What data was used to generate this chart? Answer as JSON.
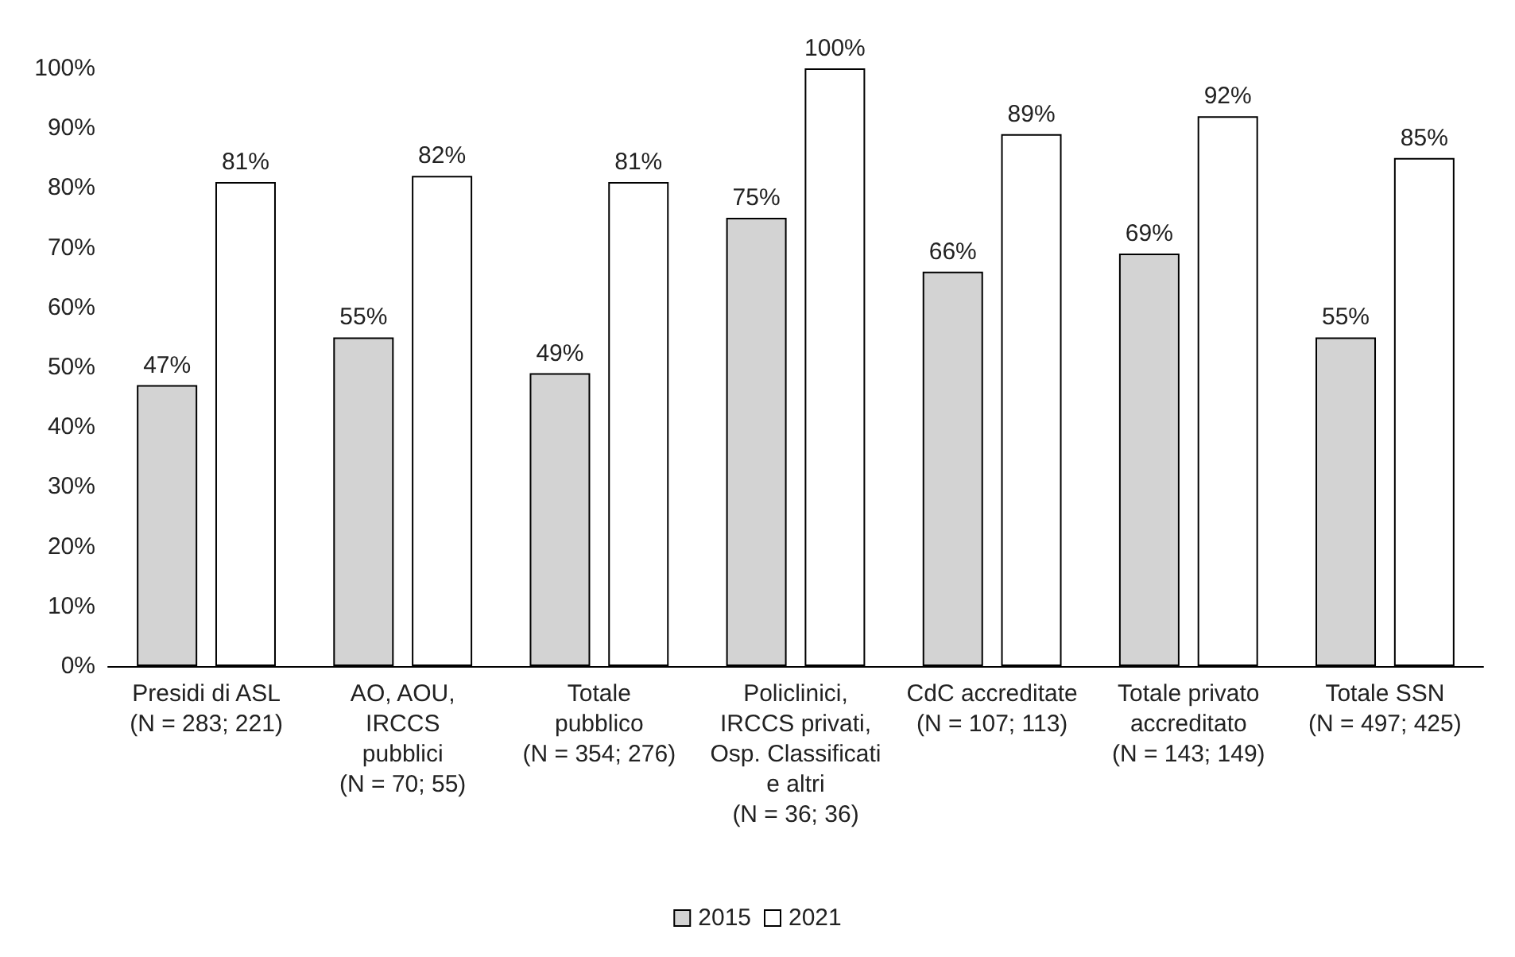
{
  "chart_data": {
    "type": "bar",
    "categories": [
      "Presidi di ASL\n(N = 283; 221)",
      "AO, AOU,\nIRCCS\npubblici\n(N = 70; 55)",
      "Totale\npubblico\n(N = 354; 276)",
      "Policlinici,\nIRCCS privati,\nOsp. Classificati\ne altri\n(N = 36; 36)",
      "CdC accreditate\n(N = 107; 113)",
      "Totale privato\naccreditato\n(N = 143; 149)",
      "Totale SSN\n(N = 497; 425)"
    ],
    "series": [
      {
        "name": "2015",
        "color": "#d3d3d3",
        "values": [
          47,
          55,
          49,
          75,
          66,
          69,
          55
        ],
        "value_labels": [
          "47%",
          "55%",
          "49%",
          "75%",
          "66%",
          "69%",
          "55%"
        ]
      },
      {
        "name": "2021",
        "color": "#ffffff",
        "values": [
          81,
          82,
          81,
          100,
          89,
          92,
          85
        ],
        "value_labels": [
          "81%",
          "82%",
          "81%",
          "100%",
          "89%",
          "92%",
          "85%"
        ]
      }
    ],
    "ylim": [
      0,
      100
    ],
    "yticks": [
      {
        "value": 0,
        "label": "0%"
      },
      {
        "value": 10,
        "label": "10%"
      },
      {
        "value": 20,
        "label": "20%"
      },
      {
        "value": 30,
        "label": "30%"
      },
      {
        "value": 40,
        "label": "40%"
      },
      {
        "value": 50,
        "label": "50%"
      },
      {
        "value": 60,
        "label": "60%"
      },
      {
        "value": 70,
        "label": "70%"
      },
      {
        "value": 80,
        "label": "80%"
      },
      {
        "value": 90,
        "label": "90%"
      },
      {
        "value": 100,
        "label": "100%"
      }
    ],
    "grid": false,
    "legend": "bottom"
  }
}
